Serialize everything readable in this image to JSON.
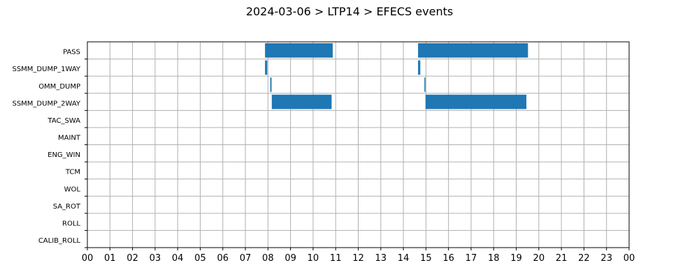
{
  "chart_data": {
    "type": "bar",
    "orientation": "horizontal-timeline",
    "title": "2024-03-06 > LTP14 > EFECS events",
    "xlabel": "",
    "ylabel": "",
    "x_unit": "hour of day",
    "xlim": [
      0,
      24
    ],
    "x_tick_labels": [
      "00",
      "01",
      "02",
      "03",
      "04",
      "05",
      "06",
      "07",
      "08",
      "09",
      "10",
      "11",
      "12",
      "13",
      "14",
      "15",
      "16",
      "17",
      "18",
      "19",
      "20",
      "21",
      "22",
      "23",
      "00"
    ],
    "categories": [
      "PASS",
      "SSMM_DUMP_1WAY",
      "OMM_DUMP",
      "SSMM_DUMP_2WAY",
      "TAC_SWA",
      "MAINT",
      "ENG_WIN",
      "TCM",
      "WOL",
      "SA_ROT",
      "ROLL",
      "CALIB_ROLL"
    ],
    "grid": true,
    "bar_color": "#1f77b4",
    "events": [
      {
        "category": "PASS",
        "start": 7.87,
        "end": 10.87
      },
      {
        "category": "PASS",
        "start": 14.65,
        "end": 19.52
      },
      {
        "category": "SSMM_DUMP_1WAY",
        "start": 7.87,
        "end": 7.97
      },
      {
        "category": "SSMM_DUMP_1WAY",
        "start": 14.65,
        "end": 14.75
      },
      {
        "category": "OMM_DUMP",
        "start": 8.1,
        "end": 8.16
      },
      {
        "category": "OMM_DUMP",
        "start": 14.93,
        "end": 14.97
      },
      {
        "category": "SSMM_DUMP_2WAY",
        "start": 8.17,
        "end": 10.82
      },
      {
        "category": "SSMM_DUMP_2WAY",
        "start": 14.98,
        "end": 19.45
      }
    ]
  }
}
